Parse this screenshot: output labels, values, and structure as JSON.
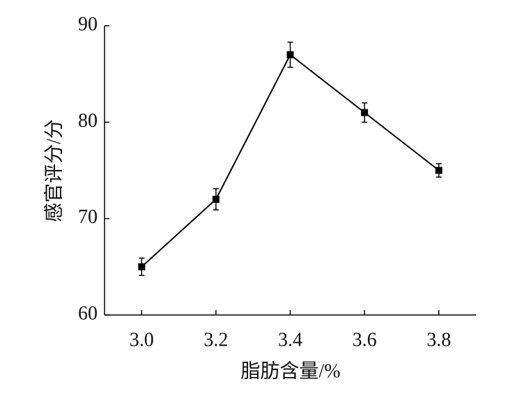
{
  "chart_data": {
    "type": "line",
    "x_label": "脂肪含量/%",
    "y_label": "感官评分/分",
    "x": [
      3.0,
      3.2,
      3.4,
      3.6,
      3.8
    ],
    "series": [
      {
        "color": "#000000",
        "values": [
          65,
          72,
          87,
          81,
          75
        ],
        "errors": [
          0.9,
          1.1,
          1.3,
          1.0,
          0.7
        ]
      }
    ],
    "xlim": [
      2.9,
      3.9
    ],
    "xticks": [
      {
        "value": 3.0,
        "label": "3.0"
      },
      {
        "value": 3.2,
        "label": "3.2"
      },
      {
        "value": 3.4,
        "label": "3.4"
      },
      {
        "value": 3.6,
        "label": "3.6"
      },
      {
        "value": 3.8,
        "label": "3.8"
      }
    ],
    "ylim": [
      60,
      90
    ],
    "yticks": [
      60,
      70,
      80,
      90
    ],
    "grid": false
  }
}
